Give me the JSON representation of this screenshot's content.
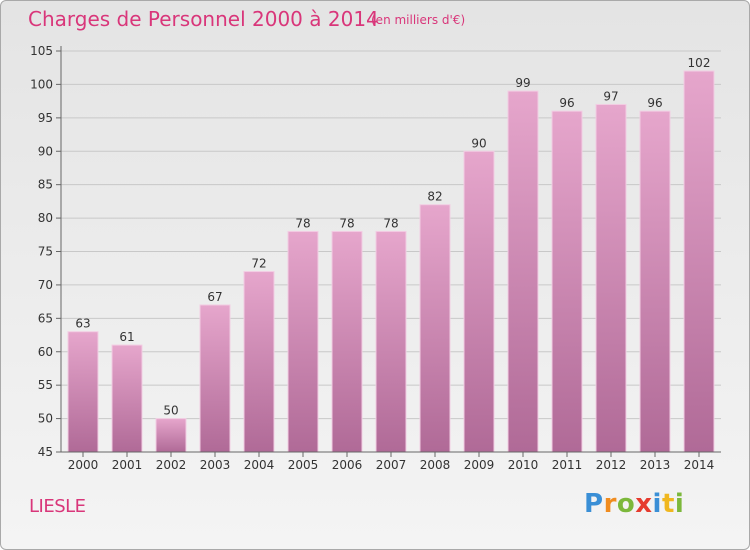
{
  "title": "Charges de Personnel 2000 à 2014",
  "subtitle": "(en milliers d'€)",
  "place_label": "LIESLE",
  "logo": {
    "letters": [
      "P",
      "r",
      "o",
      "x",
      "i",
      "t",
      "i"
    ],
    "colors": [
      "#3a8fd6",
      "#f08c1f",
      "#7cb83b",
      "#e63b2e",
      "#3a8fd6",
      "#f0b71f",
      "#7cb83b"
    ]
  },
  "colors": {
    "accent": "#d9367a",
    "bar_top": "#e6a6cc",
    "bar_bottom": "#b06a97",
    "bar_edge": "#f2cde3"
  },
  "chart_data": {
    "type": "bar",
    "categories": [
      "2000",
      "2001",
      "2002",
      "2003",
      "2004",
      "2005",
      "2006",
      "2007",
      "2008",
      "2009",
      "2010",
      "2011",
      "2012",
      "2013",
      "2014"
    ],
    "values": [
      63,
      61,
      50,
      67,
      72,
      78,
      78,
      78,
      82,
      90,
      99,
      96,
      97,
      96,
      102
    ],
    "ylim": [
      45,
      105
    ],
    "yticks": [
      45,
      50,
      55,
      60,
      65,
      70,
      75,
      80,
      85,
      90,
      95,
      100,
      105
    ],
    "grid": true,
    "data_labels": true
  }
}
